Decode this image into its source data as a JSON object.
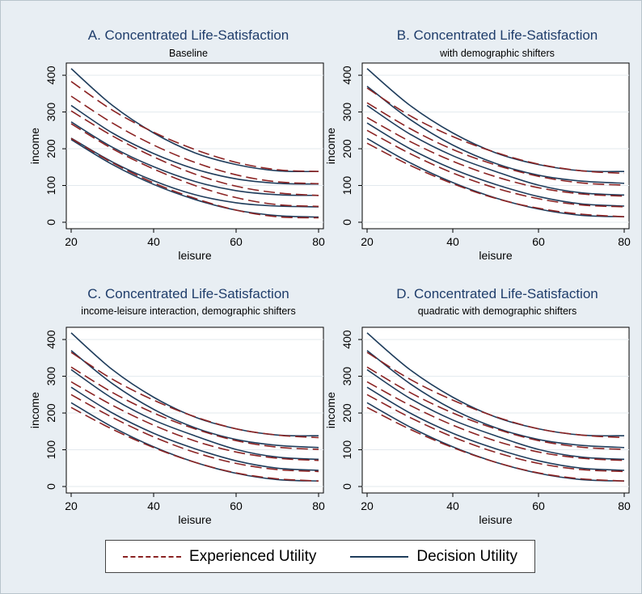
{
  "chart_data": [
    {
      "type": "line",
      "title": "A. Concentrated Life-Satisfaction",
      "subtitle": "Baseline",
      "xlabel": "leisure",
      "ylabel": "income",
      "xlim": [
        20,
        80
      ],
      "ylim": [
        0,
        420
      ],
      "xticks": [
        "20",
        "40",
        "60",
        "80"
      ],
      "yticks": [
        "0",
        "100",
        "200",
        "300",
        "400"
      ],
      "x": [
        20,
        30,
        40,
        50,
        60,
        70,
        80
      ],
      "series": [
        {
          "group": "Experienced Utility",
          "values": [
            383,
            305,
            245,
            198,
            163,
            143,
            138
          ]
        },
        {
          "group": "Experienced Utility",
          "values": [
            343,
            270,
            210,
            163,
            129,
            110,
            105
          ]
        },
        {
          "group": "Experienced Utility",
          "values": [
            303,
            235,
            178,
            131,
            98,
            80,
            73
          ]
        },
        {
          "group": "Experienced Utility",
          "values": [
            268,
            200,
            145,
            100,
            67,
            48,
            43
          ]
        },
        {
          "group": "Experienced Utility",
          "values": [
            228,
            162,
            107,
            65,
            33,
            15,
            12
          ]
        },
        {
          "group": "Decision Utility",
          "values": [
            418,
            318,
            243,
            189,
            157,
            140,
            138
          ]
        },
        {
          "group": "Decision Utility",
          "values": [
            318,
            243,
            187,
            145,
            118,
            106,
            104
          ]
        },
        {
          "group": "Decision Utility",
          "values": [
            273,
            204,
            151,
            111,
            86,
            75,
            73
          ]
        },
        {
          "group": "Decision Utility",
          "values": [
            229,
            164,
            113,
            75,
            53,
            44,
            42
          ]
        },
        {
          "group": "Decision Utility",
          "values": [
            225,
            157,
            103,
            62,
            33,
            18,
            14
          ]
        }
      ]
    },
    {
      "type": "line",
      "title": "B. Concentrated Life-Satisfaction",
      "subtitle": "with demographic shifters",
      "xlabel": "leisure",
      "ylabel": "income",
      "xlim": [
        20,
        80
      ],
      "ylim": [
        0,
        420
      ],
      "xticks": [
        "20",
        "40",
        "60",
        "80"
      ],
      "yticks": [
        "0",
        "100",
        "200",
        "300",
        "400"
      ],
      "x": [
        20,
        30,
        40,
        50,
        60,
        70,
        80
      ],
      "series": [
        {
          "group": "Experienced Utility",
          "values": [
            365,
            290,
            233,
            190,
            158,
            140,
            133
          ]
        },
        {
          "group": "Experienced Utility",
          "values": [
            325,
            255,
            198,
            156,
            125,
            107,
            101
          ]
        },
        {
          "group": "Experienced Utility",
          "values": [
            285,
            220,
            166,
            124,
            94,
            77,
            71
          ]
        },
        {
          "group": "Experienced Utility",
          "values": [
            250,
            187,
            134,
            93,
            64,
            47,
            42
          ]
        },
        {
          "group": "Experienced Utility",
          "values": [
            215,
            155,
            105,
            65,
            38,
            22,
            15
          ]
        },
        {
          "group": "Decision Utility",
          "values": [
            418,
            318,
            243,
            189,
            157,
            140,
            138
          ]
        },
        {
          "group": "Decision Utility",
          "values": [
            370,
            280,
            210,
            160,
            128,
            112,
            106
          ]
        },
        {
          "group": "Decision Utility",
          "values": [
            318,
            240,
            181,
            138,
            101,
            80,
            74
          ]
        },
        {
          "group": "Decision Utility",
          "values": [
            270,
            200,
            145,
            103,
            70,
            50,
            44
          ]
        },
        {
          "group": "Decision Utility",
          "values": [
            228,
            162,
            108,
            66,
            36,
            19,
            15
          ]
        }
      ]
    },
    {
      "type": "line",
      "title": "C. Concentrated Life-Satisfaction",
      "subtitle": "income-leisure interaction, demographic shifters",
      "xlabel": "leisure",
      "ylabel": "income",
      "xlim": [
        20,
        80
      ],
      "ylim": [
        0,
        420
      ],
      "xticks": [
        "20",
        "40",
        "60",
        "80"
      ],
      "yticks": [
        "0",
        "100",
        "200",
        "300",
        "400"
      ],
      "x": [
        20,
        30,
        40,
        50,
        60,
        70,
        80
      ],
      "series": [
        {
          "group": "Experienced Utility",
          "values": [
            365,
            292,
            235,
            190,
            157,
            140,
            133
          ]
        },
        {
          "group": "Experienced Utility",
          "values": [
            325,
            256,
            200,
            157,
            125,
            107,
            101
          ]
        },
        {
          "group": "Experienced Utility",
          "values": [
            285,
            221,
            167,
            124,
            94,
            77,
            71
          ]
        },
        {
          "group": "Experienced Utility",
          "values": [
            250,
            188,
            135,
            93,
            63,
            46,
            41
          ]
        },
        {
          "group": "Experienced Utility",
          "values": [
            215,
            156,
            106,
            66,
            37,
            21,
            15
          ]
        },
        {
          "group": "Decision Utility",
          "values": [
            418,
            318,
            243,
            189,
            157,
            140,
            138
          ]
        },
        {
          "group": "Decision Utility",
          "values": [
            370,
            280,
            210,
            160,
            128,
            112,
            106
          ]
        },
        {
          "group": "Decision Utility",
          "values": [
            318,
            240,
            181,
            138,
            101,
            80,
            74
          ]
        },
        {
          "group": "Decision Utility",
          "values": [
            270,
            200,
            145,
            103,
            70,
            50,
            44
          ]
        },
        {
          "group": "Decision Utility",
          "values": [
            228,
            162,
            108,
            66,
            36,
            19,
            15
          ]
        }
      ]
    },
    {
      "type": "line",
      "title": "D. Concentrated Life-Satisfaction",
      "subtitle": "quadratic with demographic shifters",
      "xlabel": "leisure",
      "ylabel": "income",
      "xlim": [
        20,
        80
      ],
      "ylim": [
        0,
        420
      ],
      "xticks": [
        "20",
        "40",
        "60",
        "80"
      ],
      "yticks": [
        "0",
        "100",
        "200",
        "300",
        "400"
      ],
      "x": [
        20,
        30,
        40,
        50,
        60,
        70,
        80
      ],
      "series": [
        {
          "group": "Experienced Utility",
          "values": [
            365,
            292,
            235,
            190,
            157,
            140,
            133
          ]
        },
        {
          "group": "Experienced Utility",
          "values": [
            325,
            256,
            200,
            157,
            125,
            107,
            101
          ]
        },
        {
          "group": "Experienced Utility",
          "values": [
            285,
            221,
            167,
            124,
            94,
            77,
            71
          ]
        },
        {
          "group": "Experienced Utility",
          "values": [
            250,
            188,
            135,
            93,
            63,
            46,
            41
          ]
        },
        {
          "group": "Experienced Utility",
          "values": [
            215,
            156,
            106,
            66,
            37,
            21,
            15
          ]
        },
        {
          "group": "Decision Utility",
          "values": [
            418,
            318,
            243,
            189,
            157,
            140,
            138
          ]
        },
        {
          "group": "Decision Utility",
          "values": [
            370,
            280,
            210,
            160,
            128,
            112,
            106
          ]
        },
        {
          "group": "Decision Utility",
          "values": [
            318,
            240,
            181,
            138,
            101,
            80,
            74
          ]
        },
        {
          "group": "Decision Utility",
          "values": [
            270,
            200,
            145,
            103,
            70,
            50,
            44
          ]
        },
        {
          "group": "Decision Utility",
          "values": [
            228,
            162,
            108,
            66,
            36,
            19,
            15
          ]
        }
      ]
    }
  ],
  "legend": {
    "placement": "bottom",
    "items": [
      {
        "label": "Experienced Utility",
        "style": "dashed",
        "color": "#8b2323"
      },
      {
        "label": "Decision Utility",
        "style": "solid",
        "color": "#1f3d5c"
      }
    ]
  },
  "colors": {
    "background": "#e8eef3",
    "plot_background": "#ffffff",
    "grid": "#e3e9ee",
    "title": "#1f3d6b",
    "experienced": "#8b2323",
    "decision": "#1f3d5c"
  }
}
